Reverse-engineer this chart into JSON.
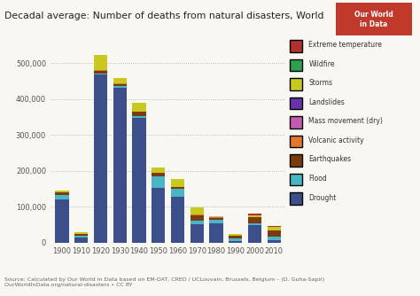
{
  "years": [
    "1900",
    "1910",
    "1920",
    "1930",
    "1940",
    "1950",
    "1960",
    "1970",
    "1980",
    "1990",
    "2000",
    "2010"
  ],
  "title": "Decadal average: Number of deaths from natural disasters, World",
  "source_text": "Source: Calculated by Our World in Data based on EM-DAT, CRED / UCLouvain, Brussels, Belgium – (D. Guha-Sapir)\nOurWorldInData.org/natural-disasters • CC BY",
  "categories": [
    "Drought",
    "Flood",
    "Earthquakes",
    "Volcanic activity",
    "Mass movement (dry)",
    "Landslides",
    "Storms",
    "Wildfire",
    "Extreme temperature"
  ],
  "colors": [
    "#3d4f8a",
    "#4ab5c4",
    "#7b3a10",
    "#e07828",
    "#c45bb0",
    "#6633aa",
    "#c8c820",
    "#2ea050",
    "#b03030"
  ],
  "data": {
    "Drought": [
      120000,
      14000,
      468000,
      430000,
      348000,
      152000,
      128000,
      52000,
      53000,
      4000,
      48000,
      8000
    ],
    "Flood": [
      12000,
      5000,
      3000,
      5000,
      4000,
      32000,
      22000,
      10000,
      11000,
      9000,
      6000,
      9000
    ],
    "Earthquakes": [
      8000,
      5000,
      8000,
      7000,
      12000,
      10000,
      5000,
      15000,
      5000,
      6000,
      16000,
      16000
    ],
    "Volcanic activity": [
      800,
      400,
      500,
      500,
      500,
      400,
      400,
      400,
      800,
      400,
      400,
      400
    ],
    "Mass movement (dry)": [
      200,
      200,
      200,
      200,
      200,
      200,
      200,
      200,
      200,
      200,
      200,
      200
    ],
    "Landslides": [
      400,
      400,
      400,
      400,
      400,
      400,
      400,
      400,
      400,
      400,
      400,
      400
    ],
    "Storms": [
      4500,
      5000,
      42000,
      14000,
      24000,
      14000,
      20000,
      20000,
      3500,
      3500,
      4500,
      9000
    ],
    "Wildfire": [
      100,
      100,
      100,
      100,
      100,
      100,
      100,
      100,
      100,
      100,
      100,
      100
    ],
    "Extreme temperature": [
      400,
      400,
      400,
      400,
      400,
      400,
      400,
      400,
      400,
      400,
      4500,
      4500
    ]
  },
  "ylim": [
    0,
    560000
  ],
  "yticks": [
    0,
    100000,
    200000,
    300000,
    400000,
    500000
  ],
  "ytick_labels": [
    "0",
    "100,000",
    "200,000",
    "300,000",
    "400,000",
    "500,000"
  ],
  "background_color": "#f9f7f2",
  "logo_text": "Our World\nin Data",
  "logo_bg": "#c0392b",
  "bar_width": 0.7
}
